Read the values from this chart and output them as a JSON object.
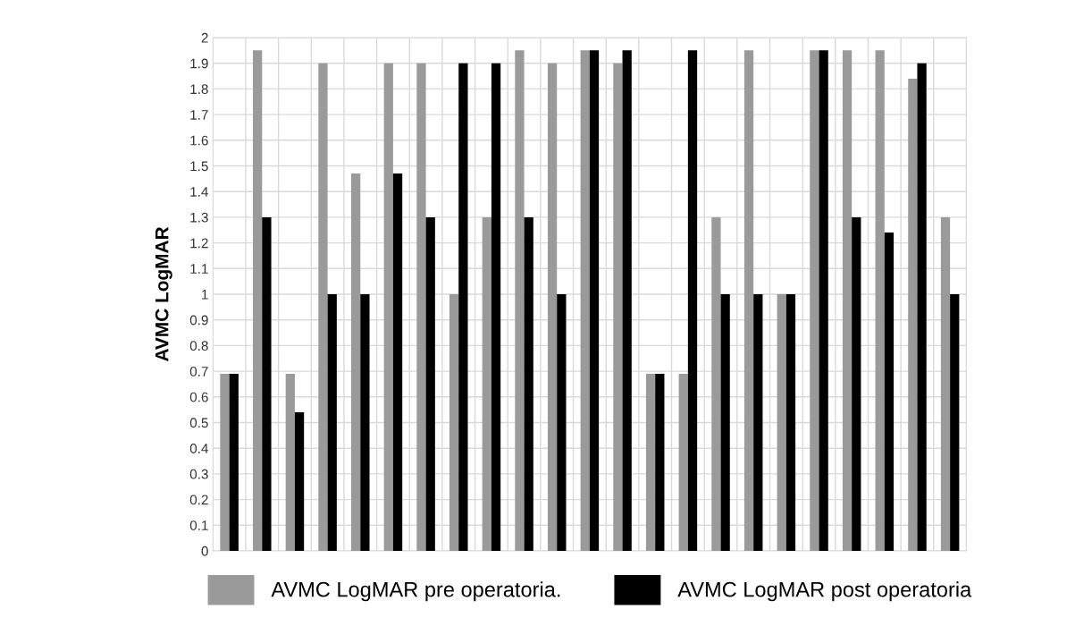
{
  "chart_data": {
    "type": "bar",
    "ylabel": "AVMC LogMAR",
    "categories": [
      null,
      null,
      null,
      null,
      null,
      null,
      null,
      null,
      null,
      null,
      null,
      null,
      null,
      null,
      null,
      null,
      null,
      null,
      null,
      null,
      null,
      null,
      null
    ],
    "series": [
      {
        "name": "AVMC LogMAR pre operatoria.",
        "color": "#9a9a9a",
        "values": [
          0.69,
          1.95,
          0.69,
          1.9,
          1.47,
          1.9,
          1.9,
          1.0,
          1.3,
          1.95,
          1.9,
          1.95,
          1.9,
          0.69,
          0.69,
          1.3,
          1.95,
          1.0,
          1.95,
          1.95,
          1.95,
          1.84,
          1.3
        ]
      },
      {
        "name": "AVMC LogMAR post operatoria",
        "color": "#000000",
        "values": [
          0.69,
          1.3,
          0.54,
          1.0,
          1.0,
          1.47,
          1.3,
          1.9,
          1.9,
          1.3,
          1.0,
          1.95,
          1.95,
          0.69,
          1.95,
          1.0,
          1.0,
          1.0,
          1.95,
          1.3,
          1.24,
          1.9,
          1.0
        ]
      }
    ],
    "ylim": [
      0,
      2
    ],
    "yticks": [
      0,
      0.1,
      0.2,
      0.3,
      0.4,
      0.5,
      0.6,
      0.7,
      0.8,
      0.9,
      1,
      1.1,
      1.2,
      1.3,
      1.4,
      1.5,
      1.6,
      1.7,
      1.8,
      1.9,
      2
    ],
    "grid": true,
    "legend": "bottom",
    "tick_labels": "y"
  }
}
